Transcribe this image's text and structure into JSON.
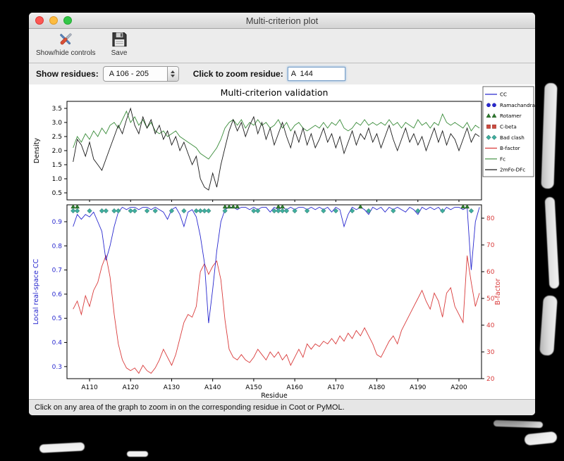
{
  "window": {
    "title": "Multi-criterion plot",
    "toolbar": {
      "controls_label": "Show/hide controls",
      "save_label": "Save"
    },
    "controls": {
      "show_residues_label": "Show residues:",
      "range_value": "A 106 - 205",
      "zoom_label": "Click to zoom residue:",
      "zoom_value": "A  144"
    },
    "status": "Click on any area of the graph to zoom in on the corresponding residue in Coot or PyMOL."
  },
  "chart_data": {
    "type": "line",
    "title": "Multi-criterion validation",
    "xlabel": "Residue",
    "x_start": 106,
    "x_end": 205,
    "xlim": [
      104.5,
      205.5
    ],
    "x_ticks": [
      {
        "v": 110,
        "t": "A110"
      },
      {
        "v": 120,
        "t": "A120"
      },
      {
        "v": 130,
        "t": "A130"
      },
      {
        "v": 140,
        "t": "A140"
      },
      {
        "v": 150,
        "t": "A150"
      },
      {
        "v": 160,
        "t": "A160"
      },
      {
        "v": 170,
        "t": "A170"
      },
      {
        "v": 180,
        "t": "A180"
      },
      {
        "v": 190,
        "t": "A190"
      },
      {
        "v": 200,
        "t": "A200"
      }
    ],
    "top_plot": {
      "ylabel": "Density",
      "ylim": [
        0.25,
        3.75
      ],
      "y_ticks": [
        {
          "v": 0.5,
          "t": "0.5"
        },
        {
          "v": 1.0,
          "t": "1.0"
        },
        {
          "v": 1.5,
          "t": "1.5"
        },
        {
          "v": 2.0,
          "t": "2.0"
        },
        {
          "v": 2.5,
          "t": "2.5"
        },
        {
          "v": 3.0,
          "t": "3.0"
        },
        {
          "v": 3.5,
          "t": "3.5"
        }
      ],
      "series": [
        {
          "name": "Fc",
          "color": "#3a8c3a",
          "values": [
            2.1,
            2.5,
            2.3,
            2.6,
            2.4,
            2.7,
            2.5,
            2.8,
            2.6,
            2.9,
            3.0,
            2.8,
            3.1,
            3.4,
            3.0,
            3.2,
            2.9,
            3.1,
            2.8,
            3.0,
            2.7,
            2.6,
            2.7,
            2.5,
            2.6,
            2.7,
            2.5,
            2.4,
            2.3,
            2.2,
            2.1,
            1.9,
            1.8,
            1.7,
            1.9,
            2.1,
            2.4,
            2.8,
            3.0,
            3.1,
            2.9,
            3.1,
            2.8,
            3.0,
            2.9,
            3.1,
            2.9,
            3.0,
            2.8,
            2.9,
            3.1,
            2.8,
            3.0,
            2.7,
            2.9,
            3.0,
            2.8,
            2.7,
            2.8,
            2.9,
            2.8,
            3.0,
            2.8,
            3.0,
            2.9,
            3.1,
            2.8,
            2.7,
            2.8,
            3.0,
            2.9,
            3.1,
            2.9,
            3.0,
            2.9,
            3.0,
            2.9,
            3.1,
            2.9,
            3.0,
            2.8,
            3.0,
            2.9,
            2.8,
            3.1,
            2.9,
            3.0,
            2.8,
            3.0,
            2.9,
            3.3,
            3.0,
            2.9,
            3.0,
            2.9,
            2.8,
            3.0,
            2.7,
            2.9,
            2.8
          ]
        },
        {
          "name": "2mFo-DFc",
          "color": "#1a1a1a",
          "values": [
            1.6,
            2.4,
            2.2,
            1.8,
            2.3,
            1.7,
            1.5,
            1.3,
            1.7,
            2.1,
            2.5,
            2.9,
            2.6,
            3.1,
            3.5,
            2.9,
            2.6,
            3.2,
            2.8,
            3.1,
            2.6,
            2.9,
            2.4,
            2.7,
            2.2,
            2.5,
            2.0,
            2.3,
            1.9,
            1.5,
            1.8,
            1.0,
            0.7,
            0.6,
            1.2,
            0.7,
            1.5,
            2.1,
            2.7,
            3.1,
            2.7,
            3.0,
            2.5,
            2.9,
            3.2,
            2.6,
            3.0,
            2.4,
            2.8,
            2.2,
            2.6,
            3.0,
            2.5,
            2.1,
            2.7,
            2.3,
            2.8,
            2.2,
            2.6,
            2.1,
            2.4,
            2.8,
            2.3,
            2.6,
            2.1,
            2.5,
            1.9,
            2.3,
            2.7,
            2.2,
            2.6,
            2.4,
            2.8,
            2.3,
            2.6,
            2.1,
            2.5,
            2.9,
            2.4,
            2.0,
            2.4,
            2.8,
            2.3,
            2.6,
            2.2,
            2.5,
            2.0,
            2.4,
            2.8,
            2.3,
            2.7,
            2.2,
            2.6,
            2.4,
            2.0,
            2.4,
            2.8,
            2.3,
            2.6,
            2.5
          ]
        }
      ]
    },
    "bottom_plot": {
      "left_ylabel": "Local real-space CC",
      "left_color": "#2828cf",
      "left_ylim": [
        0.25,
        0.97
      ],
      "left_y_ticks": [
        {
          "v": 0.3,
          "t": "0.3"
        },
        {
          "v": 0.4,
          "t": "0.4"
        },
        {
          "v": 0.5,
          "t": "0.5"
        },
        {
          "v": 0.6,
          "t": "0.6"
        },
        {
          "v": 0.7,
          "t": "0.7"
        },
        {
          "v": 0.8,
          "t": "0.8"
        },
        {
          "v": 0.9,
          "t": "0.9"
        }
      ],
      "right_ylabel": "B-factor",
      "right_color": "#d93a3a",
      "right_ylim": [
        20,
        85
      ],
      "right_y_ticks": [
        {
          "v": 20,
          "t": "20"
        },
        {
          "v": 30,
          "t": "30"
        },
        {
          "v": 40,
          "t": "40"
        },
        {
          "v": 50,
          "t": "50"
        },
        {
          "v": 60,
          "t": "60"
        },
        {
          "v": 70,
          "t": "70"
        },
        {
          "v": 80,
          "t": "80"
        }
      ],
      "cc_series": {
        "name": "CC",
        "color": "#2828cf",
        "values": [
          0.88,
          0.93,
          0.91,
          0.93,
          0.92,
          0.94,
          0.9,
          0.86,
          0.74,
          0.8,
          0.88,
          0.94,
          0.96,
          0.95,
          0.96,
          0.96,
          0.95,
          0.96,
          0.96,
          0.95,
          0.96,
          0.95,
          0.94,
          0.91,
          0.95,
          0.96,
          0.93,
          0.88,
          0.94,
          0.95,
          0.92,
          0.84,
          0.73,
          0.48,
          0.62,
          0.78,
          0.9,
          0.95,
          0.96,
          0.96,
          0.95,
          0.96,
          0.96,
          0.95,
          0.96,
          0.95,
          0.96,
          0.96,
          0.94,
          0.96,
          0.95,
          0.96,
          0.95,
          0.96,
          0.95,
          0.96,
          0.96,
          0.95,
          0.96,
          0.95,
          0.96,
          0.95,
          0.96,
          0.94,
          0.96,
          0.95,
          0.88,
          0.93,
          0.96,
          0.95,
          0.96,
          0.95,
          0.93,
          0.96,
          0.95,
          0.96,
          0.94,
          0.96,
          0.95,
          0.96,
          0.95,
          0.94,
          0.96,
          0.95,
          0.93,
          0.96,
          0.95,
          0.96,
          0.95,
          0.96,
          0.94,
          0.96,
          0.95,
          0.96,
          0.96,
          0.95,
          0.96,
          0.7,
          0.9,
          0.96
        ]
      },
      "bfactor_series": {
        "name": "B-factor",
        "color": "#d93a3a",
        "values": [
          46,
          49,
          44,
          51,
          47,
          53,
          56,
          62,
          66,
          58,
          44,
          33,
          27,
          24,
          23,
          24,
          22,
          25,
          23,
          22,
          24,
          27,
          31,
          28,
          25,
          29,
          35,
          41,
          44,
          43,
          47,
          60,
          63,
          59,
          62,
          64,
          57,
          42,
          31,
          28,
          27,
          29,
          27,
          26,
          28,
          31,
          29,
          27,
          30,
          28,
          30,
          27,
          29,
          25,
          28,
          31,
          28,
          33,
          31,
          33,
          32,
          34,
          33,
          35,
          33,
          36,
          34,
          37,
          35,
          38,
          36,
          39,
          36,
          33,
          29,
          28,
          31,
          34,
          36,
          33,
          38,
          41,
          44,
          47,
          50,
          53,
          49,
          46,
          52,
          49,
          43,
          52,
          54,
          47,
          44,
          41,
          66,
          56,
          47,
          52
        ]
      },
      "marker_rows": [
        {
          "name": "Rotamer",
          "shape": "triangle",
          "color": "#2e7d2e",
          "y": 0.962,
          "residues": [
            106,
            107,
            143,
            144,
            145,
            146,
            156,
            157,
            176,
            201,
            202
          ]
        },
        {
          "name": "Bad clash",
          "shape": "diamond",
          "color": "#3fae9e",
          "y": 0.945,
          "residues": [
            106,
            107,
            110,
            113,
            114,
            116,
            117,
            120,
            121,
            124,
            126,
            130,
            133,
            136,
            137,
            138,
            139,
            143,
            150,
            151,
            155,
            156,
            157,
            158,
            160,
            163,
            167,
            170,
            174,
            178,
            184,
            190,
            196,
            203
          ]
        }
      ]
    },
    "legend": [
      {
        "label": "CC",
        "type": "line",
        "color": "#2828cf"
      },
      {
        "label": "Ramachandran",
        "type": "circle",
        "color": "#2828cf"
      },
      {
        "label": "Rotamer",
        "type": "triangle",
        "color": "#2e7d2e"
      },
      {
        "label": "C-beta",
        "type": "square",
        "color": "#cf4a3f"
      },
      {
        "label": "Bad clash",
        "type": "diamond",
        "color": "#3fae9e"
      },
      {
        "label": "B-factor",
        "type": "line",
        "color": "#d93a3a"
      },
      {
        "label": "Fc",
        "type": "line",
        "color": "#3a8c3a"
      },
      {
        "label": "2mFo-DFc",
        "type": "line",
        "color": "#1a1a1a"
      }
    ]
  }
}
